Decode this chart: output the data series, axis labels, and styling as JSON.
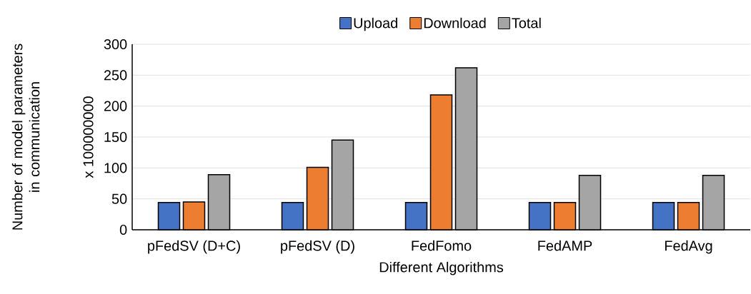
{
  "chart_data": {
    "type": "bar",
    "xlabel": "Different Algorithms",
    "ylabel": "Number of model parameters in communication",
    "annotations": [
      "x 100000000"
    ],
    "categories": [
      "pFedSV (D+C)",
      "pFedSV (D)",
      "FedFomo",
      "FedAMP",
      "FedAvg"
    ],
    "series": [
      {
        "name": "Upload",
        "color": "#4472c4",
        "values": [
          44,
          44,
          44,
          44,
          44
        ]
      },
      {
        "name": "Download",
        "color": "#ed7d31",
        "values": [
          45,
          101,
          218,
          44,
          44
        ]
      },
      {
        "name": "Total",
        "color": "#a5a5a5",
        "values": [
          89,
          145,
          262,
          88,
          88
        ]
      }
    ],
    "ylim": [
      0,
      300
    ],
    "yticks": [
      0,
      50,
      100,
      150,
      200,
      250,
      300
    ],
    "grid": "y",
    "legend": "top"
  }
}
